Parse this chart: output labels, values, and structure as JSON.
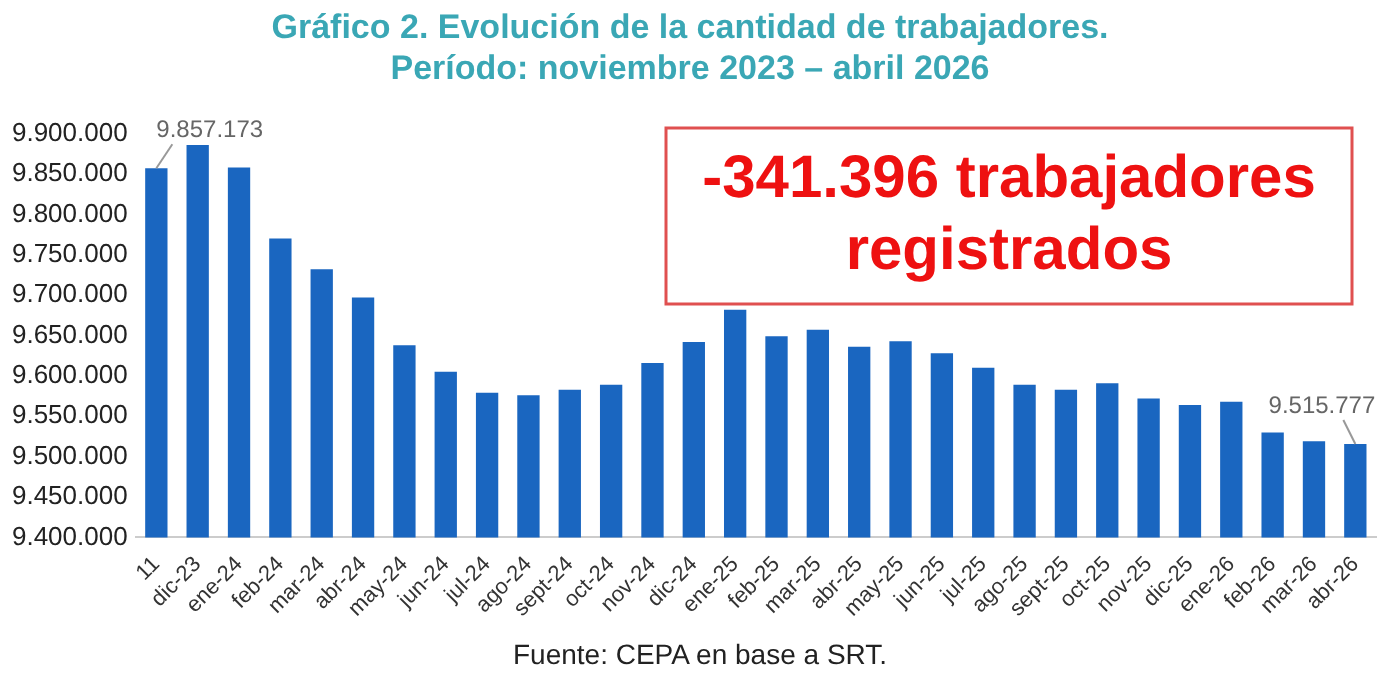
{
  "chart_data": {
    "type": "bar",
    "title": "Gráfico 2. Evolución de la cantidad de trabajadores.",
    "subtitle": "Período: noviembre 2023 – abril 2026",
    "categories": [
      "11",
      "dic-23",
      "ene-24",
      "feb-24",
      "mar-24",
      "abr-24",
      "may-24",
      "jun-24",
      "jul-24",
      "ago-24",
      "sept-24",
      "oct-24",
      "nov-24",
      "dic-24",
      "ene-25",
      "feb-25",
      "mar-25",
      "abr-25",
      "may-25",
      "jun-25",
      "jul-25",
      "ago-25",
      "sept-25",
      "oct-25",
      "nov-25",
      "dic-25",
      "ene-26",
      "feb-26",
      "mar-26",
      "abr-26"
    ],
    "values": [
      9857173,
      9886000,
      9858000,
      9770000,
      9732000,
      9697000,
      9638000,
      9605000,
      9579000,
      9576000,
      9583000,
      9589000,
      9616000,
      9642000,
      9682000,
      9649000,
      9657000,
      9636000,
      9643000,
      9628000,
      9610000,
      9589000,
      9583000,
      9591000,
      9572000,
      9564000,
      9568000,
      9530000,
      9519000,
      9515777
    ],
    "value_labels": [
      "9.857.173",
      null,
      null,
      null,
      null,
      null,
      null,
      null,
      null,
      null,
      null,
      null,
      null,
      null,
      null,
      null,
      null,
      null,
      null,
      null,
      null,
      null,
      null,
      null,
      null,
      null,
      null,
      null,
      null,
      "9.515.777"
    ],
    "color": "#1a66c0",
    "ylim": [
      9400000,
      9900000
    ],
    "yticks": [
      {
        "value": 9400000,
        "label": "9.400.000"
      },
      {
        "value": 9450000,
        "label": "9.450.000"
      },
      {
        "value": 9500000,
        "label": "9.500.000"
      },
      {
        "value": 9550000,
        "label": "9.550.000"
      },
      {
        "value": 9600000,
        "label": "9.600.000"
      },
      {
        "value": 9650000,
        "label": "9.650.000"
      },
      {
        "value": 9700000,
        "label": "9.700.000"
      },
      {
        "value": 9750000,
        "label": "9.750.000"
      },
      {
        "value": 9800000,
        "label": "9.800.000"
      },
      {
        "value": 9850000,
        "label": "9.850.000"
      },
      {
        "value": 9900000,
        "label": "9.900.000"
      }
    ],
    "grid": false,
    "legend": false,
    "annotations": [
      "-341.396 trabajadores registrados",
      "Fuente: CEPA en base a SRT."
    ]
  }
}
